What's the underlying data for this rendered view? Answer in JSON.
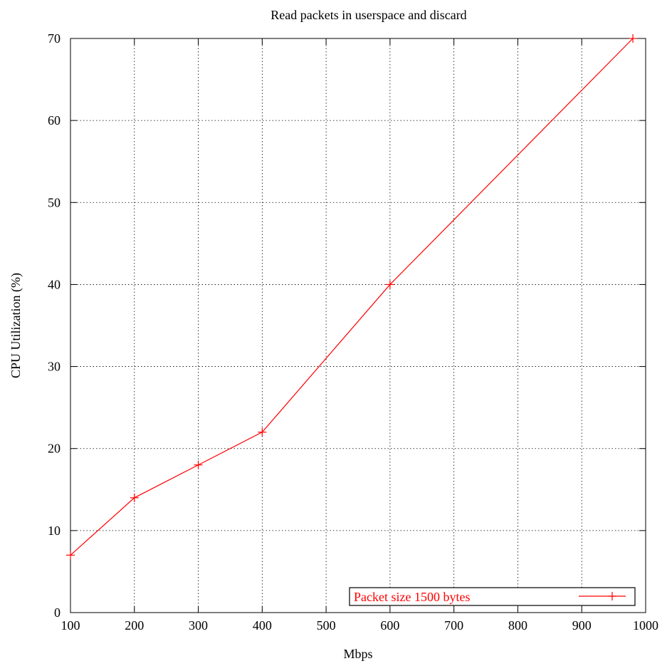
{
  "chart_data": {
    "type": "line",
    "title": "Read packets in userspace and discard",
    "xlabel": "Mbps",
    "ylabel": "CPU Utilization (%)",
    "xlim": [
      100,
      1000
    ],
    "ylim": [
      0,
      70
    ],
    "xticks": [
      100,
      200,
      300,
      400,
      500,
      600,
      700,
      800,
      900,
      1000
    ],
    "yticks": [
      0,
      10,
      20,
      30,
      40,
      50,
      60,
      70
    ],
    "grid": true,
    "legend_position": "bottom-right",
    "series": [
      {
        "name": "Packet size 1500 bytes",
        "color": "#ff0000",
        "marker": "plus",
        "x": [
          100,
          200,
          300,
          400,
          600,
          980
        ],
        "y": [
          7,
          14,
          18,
          22,
          40,
          70
        ]
      }
    ]
  }
}
